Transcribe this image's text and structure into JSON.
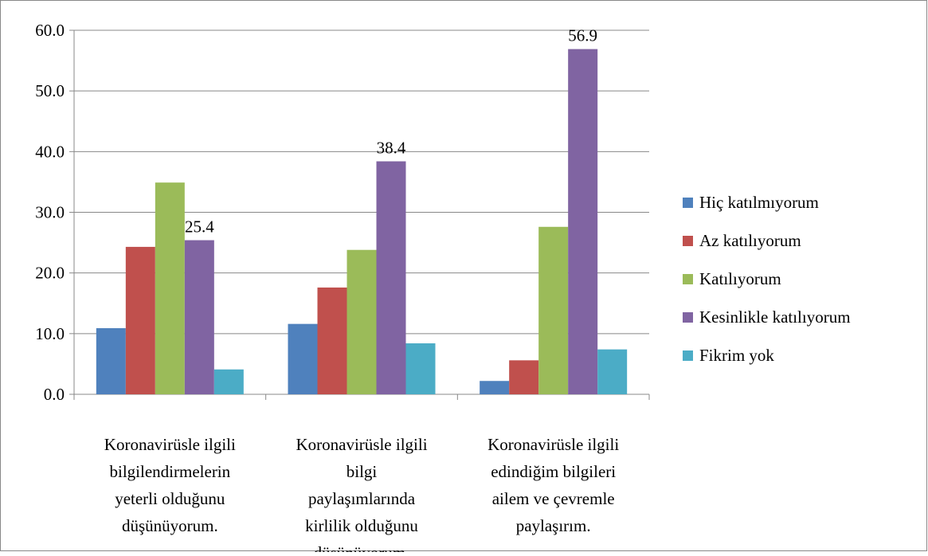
{
  "chart_data": {
    "type": "bar",
    "categories": [
      "Koronavirüsle ilgili\nbilgilendirmelerin\nyeterli olduğunu\ndüşünüyorum.",
      "Koronavirüsle ilgili\nbilgi\npaylaşımlarında\nkirlilik olduğunu\ndüşünüyorum.",
      "Koronavirüsle ilgili\nedindiğim bilgileri\nailem ve çevremle\npaylaşırım."
    ],
    "series": [
      {
        "name": "Hiç katılmıyorum",
        "color": "#4f81bd",
        "values": [
          10.9,
          11.6,
          2.2
        ]
      },
      {
        "name": "Az katılıyorum",
        "color": "#c0504d",
        "values": [
          24.3,
          17.6,
          5.6
        ]
      },
      {
        "name": "Katılıyorum",
        "color": "#9bbb59",
        "values": [
          34.9,
          23.8,
          27.6
        ]
      },
      {
        "name": "Kesinlikle katılıyorum",
        "color": "#8064a2",
        "values": [
          25.4,
          38.4,
          56.9
        ],
        "data_labels": true
      },
      {
        "name": "Fikrim yok",
        "color": "#4bacc6",
        "values": [
          4.1,
          8.4,
          7.4
        ]
      }
    ],
    "ylim": [
      0,
      60
    ],
    "yticks": [
      {
        "value": 0,
        "label": "0.0"
      },
      {
        "value": 10,
        "label": "10.0"
      },
      {
        "value": 20,
        "label": "20.0"
      },
      {
        "value": 30,
        "label": "30.0"
      },
      {
        "value": 40,
        "label": "40.0"
      },
      {
        "value": 50,
        "label": "50.0"
      },
      {
        "value": 60,
        "label": "60.0"
      }
    ],
    "grid": true,
    "legend": "right"
  }
}
